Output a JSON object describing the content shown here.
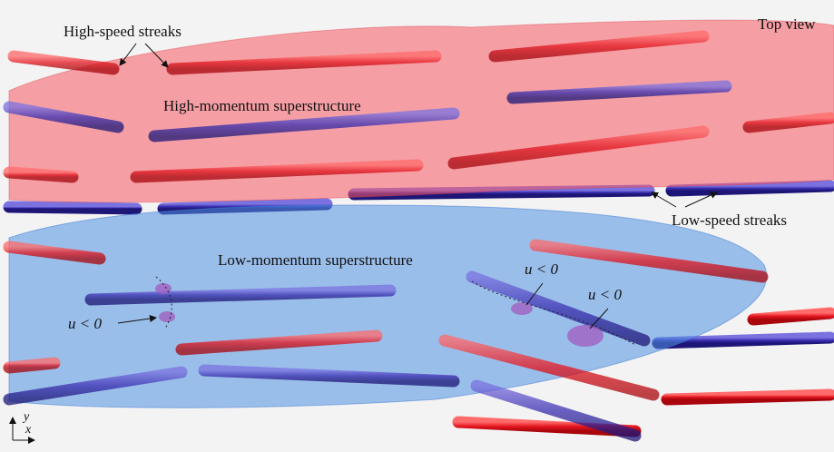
{
  "annotations": {
    "top_view": "Top view",
    "high_speed_streaks": "High-speed streaks",
    "high_momentum": "High-momentum superstructure",
    "low_speed_streaks": "Low-speed streaks",
    "low_momentum": "Low-momentum superstructure",
    "u_labels": [
      "u < 0",
      "u < 0",
      "u < 0"
    ],
    "axes": {
      "y": "y",
      "x": "x"
    }
  }
}
